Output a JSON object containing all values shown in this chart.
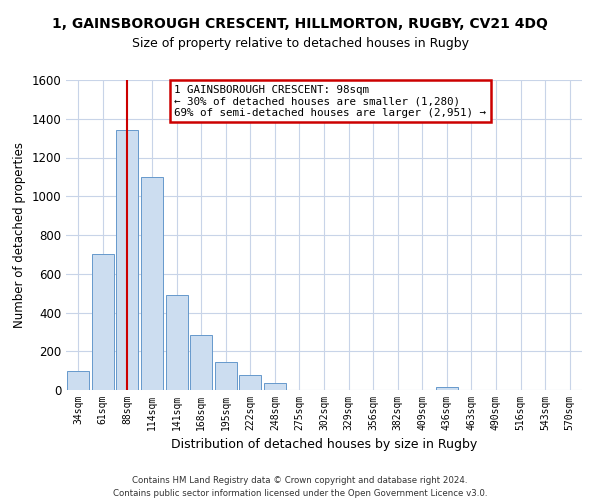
{
  "title": "1, GAINSBOROUGH CRESCENT, HILLMORTON, RUGBY, CV21 4DQ",
  "subtitle": "Size of property relative to detached houses in Rugby",
  "xlabel": "Distribution of detached houses by size in Rugby",
  "ylabel": "Number of detached properties",
  "bar_labels": [
    "34sqm",
    "61sqm",
    "88sqm",
    "114sqm",
    "141sqm",
    "168sqm",
    "195sqm",
    "222sqm",
    "248sqm",
    "275sqm",
    "302sqm",
    "329sqm",
    "356sqm",
    "382sqm",
    "409sqm",
    "436sqm",
    "463sqm",
    "490sqm",
    "516sqm",
    "543sqm",
    "570sqm"
  ],
  "bar_values": [
    100,
    700,
    1340,
    1100,
    490,
    285,
    145,
    80,
    35,
    0,
    0,
    0,
    0,
    0,
    0,
    15,
    0,
    0,
    0,
    0,
    0
  ],
  "bar_color": "#ccddf0",
  "bar_edge_color": "#6699cc",
  "vline_x": 2,
  "vline_color": "#cc0000",
  "ylim": [
    0,
    1600
  ],
  "yticks": [
    0,
    200,
    400,
    600,
    800,
    1000,
    1200,
    1400,
    1600
  ],
  "annotation_title": "1 GAINSBOROUGH CRESCENT: 98sqm",
  "annotation_line1": "← 30% of detached houses are smaller (1,280)",
  "annotation_line2": "69% of semi-detached houses are larger (2,951) →",
  "annotation_box_color": "#ffffff",
  "annotation_box_edge": "#cc0000",
  "footer1": "Contains HM Land Registry data © Crown copyright and database right 2024.",
  "footer2": "Contains public sector information licensed under the Open Government Licence v3.0.",
  "background_color": "#ffffff",
  "grid_color": "#c8d4e8"
}
